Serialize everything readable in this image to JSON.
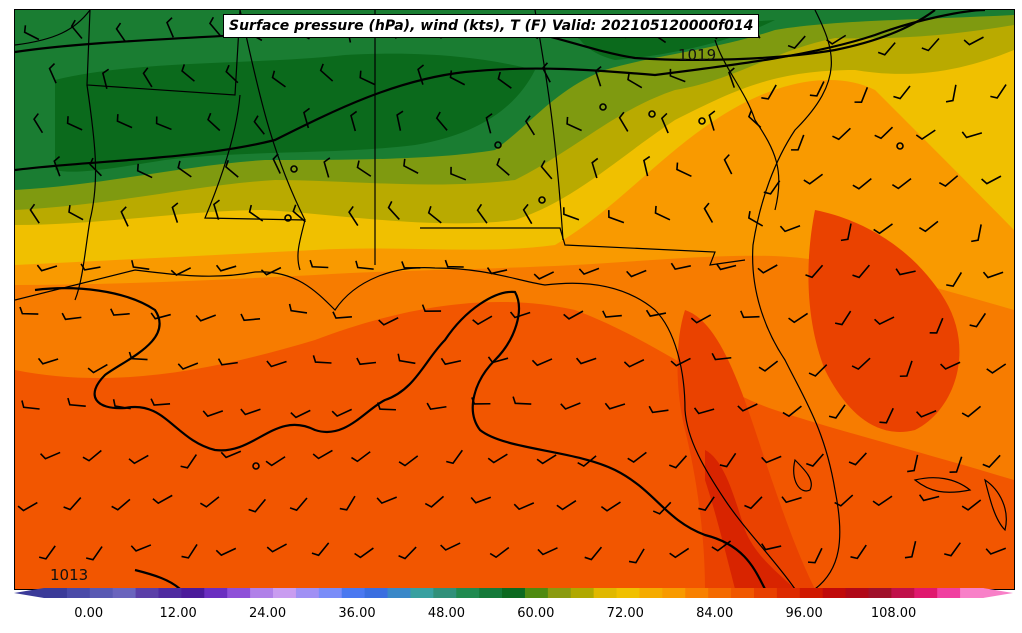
{
  "title": "Surface pressure (hPa), wind (kts), T (F) Valid: 202105120000f014",
  "isobar_labels": [
    "1019",
    "1013"
  ],
  "colorbar": {
    "min": -6,
    "max": 120,
    "tick_labels": [
      "0.00",
      "12.00",
      "24.00",
      "36.00",
      "48.00",
      "60.00",
      "72.00",
      "84.00",
      "96.00",
      "108.00"
    ],
    "colors": [
      "#3b3b99",
      "#4a4aa8",
      "#5959b3",
      "#6a64bd",
      "#5b3fa8",
      "#4f2aa0",
      "#4a1a9a",
      "#6a2ec0",
      "#8e50d8",
      "#b080e8",
      "#c99cf0",
      "#a090f4",
      "#7a8cf8",
      "#4a78f0",
      "#3a6ee0",
      "#3a88c8",
      "#38a0a0",
      "#30907a",
      "#208a50",
      "#157a3a",
      "#0c6a20",
      "#4e8a10",
      "#8a9a10",
      "#b0a800",
      "#e0b800",
      "#f0c000",
      "#f5ab00",
      "#f89a00",
      "#f88000",
      "#f46a00",
      "#f05800",
      "#e84000",
      "#dd2a00",
      "#d01800",
      "#c00a0a",
      "#b00818",
      "#a0102a",
      "#c0104a",
      "#e0186e",
      "#f040a0",
      "#f880c8"
    ]
  },
  "temperature_colors": {
    "dark_green": "#0b6a1c",
    "green": "#1a7d32",
    "olive": "#7f9a10",
    "yellow_olive": "#b9aa00",
    "yellow": "#f0c000",
    "gold": "#f5ab00",
    "orange_light": "#f99a00",
    "orange": "#f77c00",
    "orange_red": "#f25600",
    "red_orange": "#ea4200",
    "red": "#d82400"
  }
}
